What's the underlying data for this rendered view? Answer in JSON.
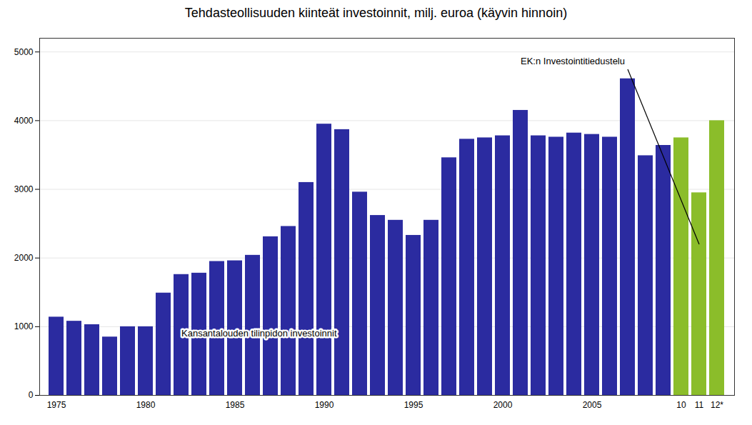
{
  "chart_data": {
    "type": "bar",
    "title": "Tehdasteollisuuden kiinteät investoinnit, milj. euroa (käyvin hinnoin)",
    "categories": [
      "1975",
      null,
      null,
      null,
      null,
      "1980",
      null,
      null,
      null,
      null,
      "1985",
      null,
      null,
      null,
      null,
      "1990",
      null,
      null,
      null,
      null,
      "1995",
      null,
      null,
      null,
      null,
      "2000",
      null,
      null,
      null,
      null,
      "2005",
      null,
      null,
      null,
      null,
      "10",
      "11",
      "12*"
    ],
    "values": [
      1140,
      1080,
      1030,
      850,
      1000,
      1000,
      1490,
      1760,
      1780,
      1950,
      1960,
      2040,
      2310,
      2460,
      3100,
      3950,
      3870,
      2960,
      2620,
      2550,
      2330,
      2550,
      3460,
      3730,
      3750,
      3780,
      4150,
      3780,
      3760,
      3820,
      3800,
      3760,
      4610,
      3490,
      3640,
      3750,
      2950,
      4000
    ],
    "colors": [
      "#2B2BA0",
      "#2B2BA0",
      "#2B2BA0",
      "#2B2BA0",
      "#2B2BA0",
      "#2B2BA0",
      "#2B2BA0",
      "#2B2BA0",
      "#2B2BA0",
      "#2B2BA0",
      "#2B2BA0",
      "#2B2BA0",
      "#2B2BA0",
      "#2B2BA0",
      "#2B2BA0",
      "#2B2BA0",
      "#2B2BA0",
      "#2B2BA0",
      "#2B2BA0",
      "#2B2BA0",
      "#2B2BA0",
      "#2B2BA0",
      "#2B2BA0",
      "#2B2BA0",
      "#2B2BA0",
      "#2B2BA0",
      "#2B2BA0",
      "#2B2BA0",
      "#2B2BA0",
      "#2B2BA0",
      "#2B2BA0",
      "#2B2BA0",
      "#2B2BA0",
      "#2B2BA0",
      "#2B2BA0",
      "#8BBD2A",
      "#8BBD2A",
      "#8BBD2A"
    ],
    "ylim": [
      0,
      5200
    ],
    "yticks": [
      0,
      1000,
      2000,
      3000,
      4000,
      5000
    ],
    "grid": true,
    "annotations": [
      "EK:n Investointitiedustelu",
      "Kansantalouden tilinpidon investoinnit"
    ]
  }
}
